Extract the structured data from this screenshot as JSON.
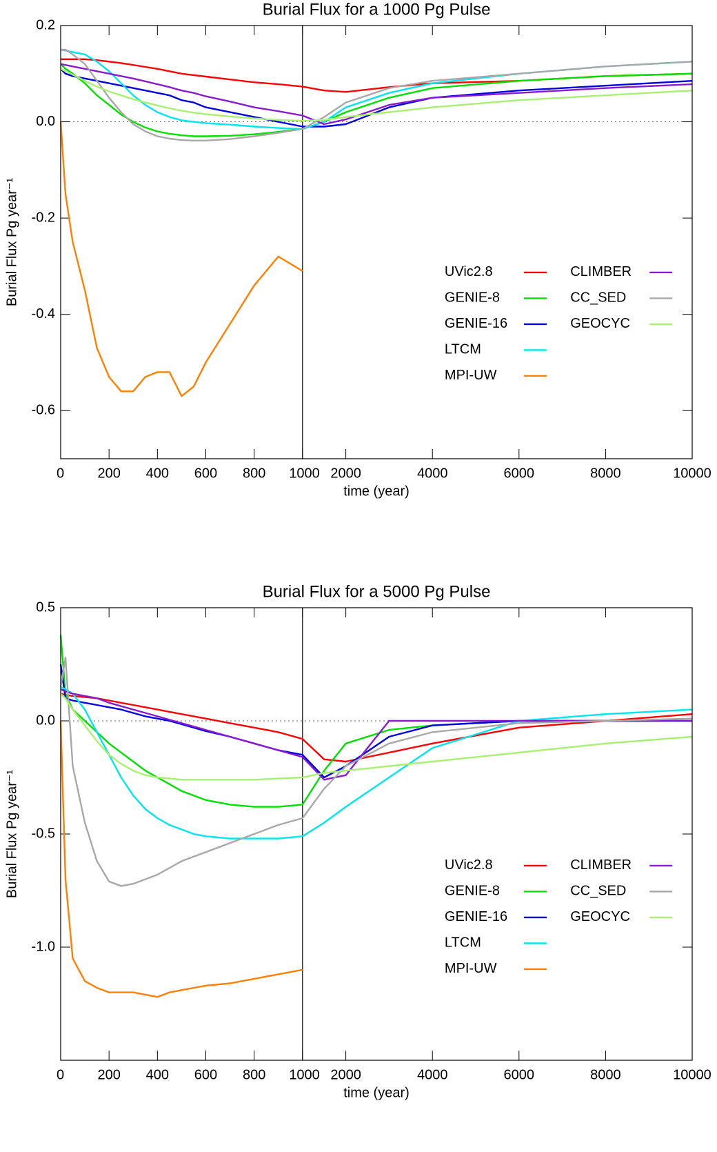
{
  "chart_data": [
    {
      "type": "line",
      "title": "Burial Flux for a 1000 Pg Pulse",
      "xlabel": "time (year)",
      "ylabel": "Burial Flux Pg year⁻¹",
      "x": [
        0,
        20,
        50,
        100,
        150,
        200,
        250,
        300,
        350,
        400,
        450,
        500,
        550,
        600,
        700,
        800,
        900,
        1000,
        1500,
        2000,
        3000,
        4000,
        6000,
        8000,
        10000
      ],
      "xlim": [
        0,
        10000
      ],
      "xbreak": 1000,
      "xticks": [
        0,
        200,
        400,
        600,
        800,
        1000,
        2000,
        4000,
        6000,
        8000,
        10000
      ],
      "ylim": [
        -0.7,
        0.2
      ],
      "yticks": [
        -0.6,
        -0.4,
        -0.2,
        {
          "value": 0,
          "label": "0.0"
        },
        0.2
      ],
      "legend": "right",
      "series": [
        {
          "name": "UVic2.8",
          "color": "#ff0000",
          "values": [
            0.13,
            0.13,
            0.13,
            0.13,
            0.128,
            0.125,
            0.122,
            0.118,
            0.114,
            0.11,
            0.105,
            0.1,
            0.097,
            0.094,
            0.088,
            0.082,
            0.078,
            0.073,
            0.065,
            0.062,
            0.072,
            0.08,
            0.085,
            0.095,
            0.1
          ]
        },
        {
          "name": "GENIE-8",
          "color": "#00e000",
          "values": [
            0.12,
            0.11,
            0.1,
            0.08,
            0.055,
            0.035,
            0.015,
            0.0,
            -0.012,
            -0.02,
            -0.025,
            -0.028,
            -0.03,
            -0.03,
            -0.029,
            -0.026,
            -0.021,
            -0.015,
            0.0,
            0.02,
            0.05,
            0.07,
            0.085,
            0.095,
            0.1
          ]
        },
        {
          "name": "GENIE-16",
          "color": "#0000e0",
          "values": [
            0.11,
            0.1,
            0.095,
            0.09,
            0.085,
            0.08,
            0.075,
            0.07,
            0.065,
            0.06,
            0.055,
            0.045,
            0.04,
            0.03,
            0.02,
            0.01,
            0.0,
            -0.01,
            -0.01,
            -0.005,
            0.03,
            0.05,
            0.065,
            0.075,
            0.085
          ]
        },
        {
          "name": "LTCM",
          "color": "#00e5ee",
          "values": [
            0.15,
            0.148,
            0.145,
            0.14,
            0.125,
            0.105,
            0.08,
            0.055,
            0.035,
            0.02,
            0.01,
            0.003,
            0.0,
            -0.003,
            -0.006,
            -0.01,
            -0.013,
            -0.015,
            0.0,
            0.03,
            0.06,
            0.08,
            0.1,
            0.115,
            0.125
          ]
        },
        {
          "name": "MPI-UW",
          "color": "#ff8000",
          "values": [
            0.0,
            -0.15,
            -0.25,
            -0.35,
            -0.47,
            -0.53,
            -0.56,
            -0.56,
            -0.53,
            -0.52,
            -0.52,
            -0.57,
            -0.55,
            -0.5,
            -0.42,
            -0.34,
            -0.28,
            -0.31,
            null,
            null,
            null,
            null,
            null,
            null,
            null
          ]
        },
        {
          "name": "CLIMBER",
          "color": "#8a1ad0",
          "values": [
            0.12,
            0.118,
            0.115,
            0.11,
            0.105,
            0.1,
            0.095,
            0.09,
            0.084,
            0.078,
            0.072,
            0.065,
            0.06,
            0.053,
            0.042,
            0.03,
            0.022,
            0.013,
            -0.005,
            0.005,
            0.035,
            0.05,
            0.06,
            0.07,
            0.078
          ]
        },
        {
          "name": "CC_SED",
          "color": "#a8a8a8",
          "values": [
            0.15,
            0.15,
            0.14,
            0.12,
            0.085,
            0.05,
            0.02,
            -0.005,
            -0.02,
            -0.03,
            -0.035,
            -0.038,
            -0.039,
            -0.039,
            -0.036,
            -0.03,
            -0.023,
            -0.015,
            0.01,
            0.04,
            0.07,
            0.085,
            0.1,
            0.115,
            0.125
          ]
        },
        {
          "name": "GEOCYC",
          "color": "#a8f070",
          "values": [
            0.11,
            0.105,
            0.098,
            0.085,
            0.073,
            0.063,
            0.055,
            0.047,
            0.04,
            0.034,
            0.028,
            0.023,
            0.019,
            0.016,
            0.011,
            0.007,
            0.004,
            0.002,
            0.004,
            0.01,
            0.02,
            0.03,
            0.045,
            0.055,
            0.065
          ]
        }
      ]
    },
    {
      "type": "line",
      "title": "Burial Flux for a 5000 Pg Pulse",
      "xlabel": "time (year)",
      "ylabel": "Burial Flux Pg year⁻¹",
      "x": [
        0,
        20,
        50,
        100,
        150,
        200,
        250,
        300,
        350,
        400,
        450,
        500,
        550,
        600,
        700,
        800,
        900,
        1000,
        1500,
        2000,
        3000,
        4000,
        6000,
        8000,
        10000
      ],
      "xlim": [
        0,
        10000
      ],
      "xbreak": 1000,
      "xticks": [
        0,
        200,
        400,
        600,
        800,
        1000,
        2000,
        4000,
        6000,
        8000,
        10000
      ],
      "ylim": [
        -1.5,
        0.5
      ],
      "yticks": [
        {
          "value": -1,
          "label": "-1.0"
        },
        -0.5,
        {
          "value": 0,
          "label": "0.0"
        },
        0.5
      ],
      "legend": "right",
      "series": [
        {
          "name": "UVic2.8",
          "color": "#ff0000",
          "values": [
            0.12,
            0.115,
            0.11,
            0.105,
            0.1,
            0.09,
            0.08,
            0.07,
            0.06,
            0.05,
            0.04,
            0.03,
            0.02,
            0.01,
            -0.01,
            -0.03,
            -0.05,
            -0.08,
            -0.17,
            -0.18,
            -0.14,
            -0.1,
            -0.03,
            0.0,
            0.03
          ]
        },
        {
          "name": "GENIE-8",
          "color": "#00e000",
          "values": [
            0.38,
            0.12,
            0.05,
            0.0,
            -0.05,
            -0.1,
            -0.14,
            -0.18,
            -0.22,
            -0.25,
            -0.28,
            -0.31,
            -0.33,
            -0.35,
            -0.37,
            -0.38,
            -0.38,
            -0.37,
            -0.22,
            -0.1,
            -0.04,
            -0.02,
            0.0,
            0.0,
            0.0
          ]
        },
        {
          "name": "GENIE-16",
          "color": "#0000e0",
          "values": [
            0.25,
            0.1,
            0.09,
            0.08,
            0.07,
            0.06,
            0.05,
            0.035,
            0.02,
            0.01,
            0.0,
            -0.015,
            -0.03,
            -0.045,
            -0.07,
            -0.1,
            -0.13,
            -0.15,
            -0.25,
            -0.2,
            -0.07,
            -0.02,
            0.0,
            0.0,
            0.0
          ]
        },
        {
          "name": "LTCM",
          "color": "#00e5ee",
          "values": [
            0.15,
            0.14,
            0.12,
            0.05,
            -0.05,
            -0.15,
            -0.25,
            -0.33,
            -0.39,
            -0.43,
            -0.46,
            -0.48,
            -0.5,
            -0.51,
            -0.52,
            -0.52,
            -0.52,
            -0.51,
            -0.45,
            -0.38,
            -0.25,
            -0.12,
            0.0,
            0.03,
            0.05
          ]
        },
        {
          "name": "MPI-UW",
          "color": "#ff8000",
          "values": [
            0.0,
            -0.7,
            -1.05,
            -1.15,
            -1.18,
            -1.2,
            -1.2,
            -1.2,
            -1.21,
            -1.22,
            -1.2,
            -1.19,
            -1.18,
            -1.17,
            -1.16,
            -1.14,
            -1.12,
            -1.1,
            null,
            null,
            null,
            null,
            null,
            null,
            null
          ]
        },
        {
          "name": "CLIMBER",
          "color": "#8a1ad0",
          "values": [
            0.14,
            0.13,
            0.12,
            0.11,
            0.1,
            0.08,
            0.065,
            0.05,
            0.035,
            0.02,
            0.005,
            -0.01,
            -0.025,
            -0.04,
            -0.07,
            -0.1,
            -0.13,
            -0.16,
            -0.26,
            -0.24,
            0.0,
            0.0,
            0.0,
            0.0,
            0.0
          ]
        },
        {
          "name": "CC_SED",
          "color": "#a8a8a8",
          "values": [
            0.15,
            0.28,
            -0.2,
            -0.45,
            -0.62,
            -0.71,
            -0.73,
            -0.72,
            -0.7,
            -0.68,
            -0.65,
            -0.62,
            -0.6,
            -0.58,
            -0.54,
            -0.5,
            -0.46,
            -0.43,
            -0.3,
            -0.2,
            -0.1,
            -0.05,
            -0.01,
            0.0,
            0.01
          ]
        },
        {
          "name": "GEOCYC",
          "color": "#a8f070",
          "values": [
            0.12,
            0.1,
            0.05,
            -0.02,
            -0.09,
            -0.15,
            -0.19,
            -0.22,
            -0.24,
            -0.25,
            -0.255,
            -0.26,
            -0.26,
            -0.26,
            -0.26,
            -0.26,
            -0.255,
            -0.25,
            -0.23,
            -0.22,
            -0.2,
            -0.18,
            -0.14,
            -0.1,
            -0.07
          ]
        }
      ]
    }
  ]
}
